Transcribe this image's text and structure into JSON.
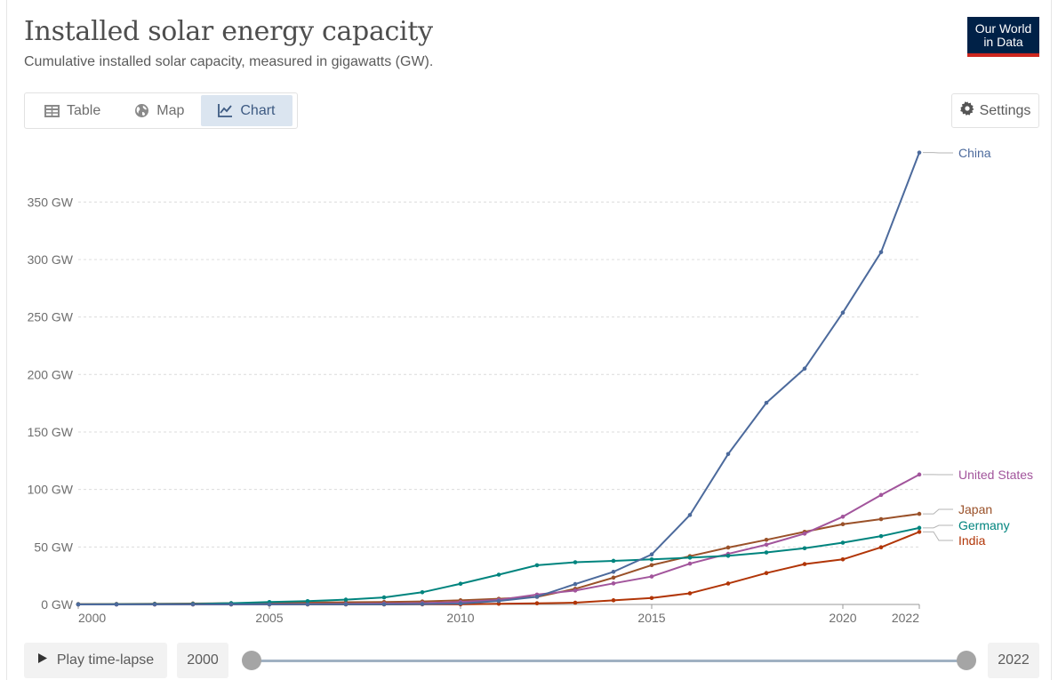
{
  "header": {
    "title": "Installed solar energy capacity",
    "subtitle": "Cumulative installed solar capacity, measured in gigawatts (GW).",
    "logo_line1": "Our World",
    "logo_line2": "in Data"
  },
  "tabs": [
    {
      "label": "Table",
      "icon": "table-icon",
      "active": false
    },
    {
      "label": "Map",
      "icon": "globe-icon",
      "active": false
    },
    {
      "label": "Chart",
      "icon": "line-chart-icon",
      "active": true
    }
  ],
  "settings": {
    "label": "Settings",
    "icon": "gear-icon"
  },
  "footer": {
    "play_label": "Play time-lapse",
    "start_year": "2000",
    "end_year": "2022"
  },
  "colors": {
    "China": "#4c6a9c",
    "United States": "#a2559c",
    "Japan": "#883039",
    "Germany": "#00847e",
    "India": "#b13507",
    "Japan_actual": "#9a5129"
  },
  "chart_data": {
    "type": "line",
    "title": "Installed solar energy capacity",
    "subtitle": "Cumulative installed solar capacity, measured in gigawatts (GW).",
    "xlabel": "",
    "ylabel": "",
    "xlim": [
      2000,
      2022
    ],
    "ylim": [
      0,
      400
    ],
    "grid": "horizontal",
    "legend": "line-end labels on right",
    "y_ticks": [
      {
        "value": 0,
        "label": "0 GW"
      },
      {
        "value": 50,
        "label": "50 GW"
      },
      {
        "value": 100,
        "label": "100 GW"
      },
      {
        "value": 150,
        "label": "150 GW"
      },
      {
        "value": 200,
        "label": "200 GW"
      },
      {
        "value": 250,
        "label": "250 GW"
      },
      {
        "value": 300,
        "label": "300 GW"
      },
      {
        "value": 350,
        "label": "350 GW"
      }
    ],
    "x_ticks": [
      {
        "value": 2000,
        "label": "2000"
      },
      {
        "value": 2005,
        "label": "2005"
      },
      {
        "value": 2010,
        "label": "2010"
      },
      {
        "value": 2015,
        "label": "2015"
      },
      {
        "value": 2020,
        "label": "2020"
      },
      {
        "value": 2022,
        "label": "2022"
      }
    ],
    "x": [
      2000,
      2001,
      2002,
      2003,
      2004,
      2005,
      2006,
      2007,
      2008,
      2009,
      2010,
      2011,
      2012,
      2013,
      2014,
      2015,
      2016,
      2017,
      2018,
      2019,
      2020,
      2021,
      2022
    ],
    "series": [
      {
        "name": "China",
        "color": "#4c6a9c",
        "values": [
          0.02,
          0.03,
          0.05,
          0.06,
          0.07,
          0.07,
          0.08,
          0.1,
          0.14,
          0.3,
          0.8,
          3,
          6.7,
          17.7,
          28.4,
          43.5,
          77.8,
          130.8,
          175.4,
          205.1,
          253.8,
          306.4,
          393
        ]
      },
      {
        "name": "United States",
        "color": "#a2559c",
        "values": [
          0.02,
          0.03,
          0.04,
          0.06,
          0.1,
          0.2,
          0.3,
          0.5,
          0.8,
          1.2,
          2.1,
          4.0,
          8.6,
          12.1,
          18.3,
          24.3,
          35.5,
          44.0,
          52.0,
          61.6,
          76.3,
          95.2,
          113
        ]
      },
      {
        "name": "Japan",
        "color": "#9a5129",
        "values": [
          0.3,
          0.4,
          0.6,
          0.8,
          1.1,
          1.4,
          1.7,
          1.9,
          2.1,
          2.6,
          3.6,
          4.9,
          6.6,
          13.6,
          23.3,
          34.2,
          42.0,
          49.5,
          56.2,
          63.2,
          69.8,
          74.2,
          78.8
        ]
      },
      {
        "name": "Germany",
        "color": "#00847e",
        "values": [
          0.1,
          0.2,
          0.3,
          0.4,
          1.1,
          2.1,
          2.9,
          4.2,
          6.1,
          10.6,
          18.0,
          25.9,
          34.1,
          36.7,
          37.9,
          39.2,
          40.7,
          42.3,
          45.2,
          48.9,
          53.7,
          59.4,
          66.6
        ]
      },
      {
        "name": "India",
        "color": "#b13507",
        "values": [
          0.01,
          0.01,
          0.02,
          0.03,
          0.03,
          0.03,
          0.03,
          0.03,
          0.04,
          0.05,
          0.07,
          0.6,
          1.0,
          1.5,
          3.6,
          5.6,
          9.7,
          18.2,
          27.3,
          35.1,
          39.2,
          49.7,
          63.1
        ]
      }
    ]
  }
}
